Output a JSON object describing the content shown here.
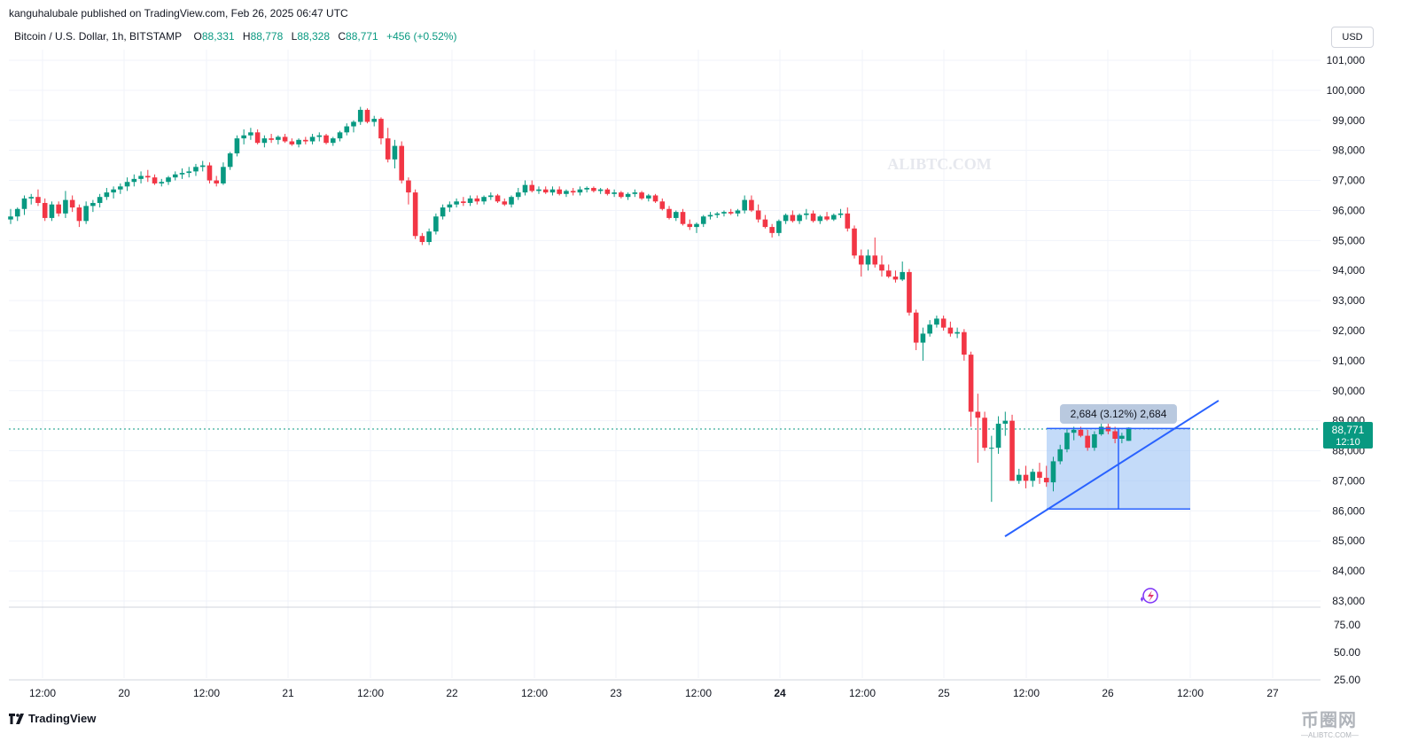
{
  "header": {
    "published": "kanguhalubale published on TradingView.com, Feb 26, 2025 06:47 UTC",
    "symbol": "Bitcoin / U.S. Dollar, 1h, BITSTAMP",
    "o_label": "O",
    "o_value": "88,331",
    "h_label": "H",
    "h_value": "88,778",
    "l_label": "L",
    "l_value": "88,328",
    "c_label": "C",
    "c_value": "88,771",
    "change": "+456 (+0.52%)"
  },
  "currency": "USD",
  "watermark": "ALIBTC.COM",
  "brand": "TradingView",
  "corner_watermark": {
    "cn": "币圈网",
    "url": "—ALIBTC.COM—"
  },
  "colors": {
    "up": "#089981",
    "down": "#F23645",
    "tool_fill": "#9CC3F5",
    "tool_line": "#2962FF",
    "grid": "#f0f3fa"
  },
  "chart_data": {
    "type": "candlestick",
    "interval": "1h",
    "y_ticks": [
      "101,000",
      "100,000",
      "99,000",
      "98,000",
      "97,000",
      "96,000",
      "95,000",
      "94,000",
      "93,000",
      "92,000",
      "91,000",
      "90,000",
      "89,000",
      "88,000",
      "87,000",
      "86,000",
      "85,000",
      "84,000",
      "83,000"
    ],
    "ylim": [
      83000,
      101500
    ],
    "lower_ticks": [
      "75.00",
      "50.00",
      "25.00"
    ],
    "x_ticks": [
      "12:00",
      "20",
      "12:00",
      "21",
      "12:00",
      "22",
      "12:00",
      "23",
      "12:00",
      "24",
      "12:00",
      "25",
      "12:00",
      "26",
      "12:00",
      "27"
    ],
    "bold_x_tick": "24",
    "candles_ohlc": [
      [
        95700,
        96050,
        95550,
        95800
      ],
      [
        95800,
        96100,
        95650,
        96050
      ],
      [
        96050,
        96500,
        95850,
        96400
      ],
      [
        96400,
        96550,
        96200,
        96450
      ],
      [
        96450,
        96700,
        96150,
        96250
      ],
      [
        96250,
        96400,
        95650,
        95750
      ],
      [
        95750,
        96300,
        95650,
        96200
      ],
      [
        96200,
        96300,
        95800,
        95900
      ],
      [
        95900,
        96650,
        95750,
        96350
      ],
      [
        96350,
        96500,
        95950,
        96100
      ],
      [
        96100,
        96200,
        95450,
        95650
      ],
      [
        95650,
        96300,
        95550,
        96150
      ],
      [
        96150,
        96350,
        95950,
        96250
      ],
      [
        96250,
        96550,
        96100,
        96450
      ],
      [
        96450,
        96750,
        96350,
        96600
      ],
      [
        96600,
        96800,
        96400,
        96700
      ],
      [
        96700,
        96900,
        96550,
        96800
      ],
      [
        96800,
        97100,
        96650,
        96950
      ],
      [
        96950,
        97200,
        96800,
        97050
      ],
      [
        97050,
        97300,
        96900,
        97150
      ],
      [
        97150,
        97350,
        96950,
        97100
      ],
      [
        97100,
        97200,
        96850,
        96900
      ],
      [
        96900,
        97050,
        96800,
        96950
      ],
      [
        96950,
        97150,
        96850,
        97100
      ],
      [
        97100,
        97300,
        97000,
        97200
      ],
      [
        97200,
        97400,
        97050,
        97250
      ],
      [
        97250,
        97450,
        97100,
        97300
      ],
      [
        97300,
        97550,
        97150,
        97450
      ],
      [
        97450,
        97650,
        97300,
        97500
      ],
      [
        97500,
        97600,
        96900,
        97000
      ],
      [
        97000,
        97150,
        96800,
        96900
      ],
      [
        96900,
        97600,
        96850,
        97450
      ],
      [
        97450,
        97950,
        97350,
        97900
      ],
      [
        97900,
        98500,
        97800,
        98400
      ],
      [
        98400,
        98700,
        98200,
        98500
      ],
      [
        98500,
        98750,
        98350,
        98600
      ],
      [
        98600,
        98700,
        98200,
        98250
      ],
      [
        98250,
        98500,
        98100,
        98400
      ],
      [
        98400,
        98550,
        98250,
        98350
      ],
      [
        98350,
        98500,
        98200,
        98450
      ],
      [
        98450,
        98550,
        98250,
        98300
      ],
      [
        98300,
        98400,
        98150,
        98200
      ],
      [
        98200,
        98400,
        98100,
        98350
      ],
      [
        98350,
        98450,
        98200,
        98300
      ],
      [
        98300,
        98550,
        98200,
        98450
      ],
      [
        98450,
        98600,
        98300,
        98500
      ],
      [
        98500,
        98550,
        98200,
        98250
      ],
      [
        98250,
        98450,
        98150,
        98400
      ],
      [
        98400,
        98650,
        98300,
        98600
      ],
      [
        98600,
        98900,
        98500,
        98800
      ],
      [
        98800,
        99000,
        98600,
        98950
      ],
      [
        98950,
        99450,
        98850,
        99350
      ],
      [
        99350,
        99400,
        98900,
        98950
      ],
      [
        98950,
        99150,
        98800,
        99050
      ],
      [
        99050,
        99100,
        98200,
        98400
      ],
      [
        98400,
        98750,
        97600,
        97700
      ],
      [
        97700,
        98350,
        97400,
        98150
      ],
      [
        98150,
        98300,
        96900,
        97000
      ],
      [
        97000,
        97100,
        96200,
        96600
      ],
      [
        96600,
        96700,
        95050,
        95150
      ],
      [
        95150,
        95250,
        94850,
        94950
      ],
      [
        94950,
        95400,
        94850,
        95300
      ],
      [
        95300,
        95900,
        95200,
        95800
      ],
      [
        95800,
        96200,
        95700,
        96100
      ],
      [
        96100,
        96300,
        95950,
        96200
      ],
      [
        96200,
        96400,
        96100,
        96300
      ],
      [
        96300,
        96450,
        96150,
        96250
      ],
      [
        96250,
        96500,
        96150,
        96400
      ],
      [
        96400,
        96500,
        96200,
        96300
      ],
      [
        96300,
        96500,
        96200,
        96450
      ],
      [
        96450,
        96600,
        96350,
        96500
      ],
      [
        96500,
        96550,
        96250,
        96300
      ],
      [
        96300,
        96400,
        96150,
        96200
      ],
      [
        96200,
        96500,
        96100,
        96450
      ],
      [
        96450,
        96750,
        96350,
        96600
      ],
      [
        96600,
        97000,
        96500,
        96850
      ],
      [
        96850,
        97000,
        96600,
        96650
      ],
      [
        96650,
        96800,
        96550,
        96700
      ],
      [
        96700,
        96800,
        96550,
        96600
      ],
      [
        96600,
        96800,
        96500,
        96700
      ],
      [
        96700,
        96800,
        96500,
        96550
      ],
      [
        96550,
        96700,
        96450,
        96650
      ],
      [
        96650,
        96750,
        96500,
        96600
      ],
      [
        96600,
        96800,
        96500,
        96700
      ],
      [
        96700,
        96800,
        96600,
        96750
      ],
      [
        96750,
        96800,
        96600,
        96650
      ],
      [
        96650,
        96750,
        96550,
        96700
      ],
      [
        96700,
        96750,
        96500,
        96550
      ],
      [
        96550,
        96700,
        96450,
        96600
      ],
      [
        96600,
        96650,
        96400,
        96450
      ],
      [
        96450,
        96600,
        96350,
        96550
      ],
      [
        96550,
        96700,
        96450,
        96600
      ],
      [
        96600,
        96650,
        96350,
        96400
      ],
      [
        96400,
        96550,
        96300,
        96500
      ],
      [
        96500,
        96550,
        96250,
        96300
      ],
      [
        96300,
        96400,
        96000,
        96050
      ],
      [
        96050,
        96150,
        95700,
        95750
      ],
      [
        95750,
        96000,
        95650,
        95950
      ],
      [
        95950,
        96050,
        95500,
        95550
      ],
      [
        95550,
        95700,
        95350,
        95450
      ],
      [
        95450,
        95600,
        95250,
        95550
      ],
      [
        95550,
        95850,
        95450,
        95800
      ],
      [
        95800,
        95950,
        95700,
        95850
      ],
      [
        95850,
        95950,
        95750,
        95900
      ],
      [
        95900,
        96000,
        95800,
        95950
      ],
      [
        95950,
        96050,
        95850,
        95900
      ],
      [
        95900,
        96050,
        95800,
        96000
      ],
      [
        96000,
        96500,
        95900,
        96350
      ],
      [
        96350,
        96500,
        95950,
        96000
      ],
      [
        96000,
        96200,
        95600,
        95700
      ],
      [
        95700,
        95850,
        95400,
        95450
      ],
      [
        95450,
        95550,
        95100,
        95250
      ],
      [
        95250,
        95700,
        95150,
        95650
      ],
      [
        95650,
        95900,
        95550,
        95850
      ],
      [
        95850,
        96000,
        95600,
        95650
      ],
      [
        95650,
        95900,
        95550,
        95850
      ],
      [
        95850,
        96050,
        95700,
        95900
      ],
      [
        95900,
        96000,
        95600,
        95650
      ],
      [
        95650,
        95850,
        95550,
        95800
      ],
      [
        95800,
        95950,
        95650,
        95700
      ],
      [
        95700,
        95900,
        95650,
        95850
      ],
      [
        95850,
        96050,
        95750,
        95900
      ],
      [
        95900,
        96100,
        95300,
        95400
      ],
      [
        95400,
        95500,
        94400,
        94500
      ],
      [
        94500,
        94700,
        93800,
        94200
      ],
      [
        94200,
        94700,
        94000,
        94500
      ],
      [
        94500,
        95100,
        94100,
        94200
      ],
      [
        94200,
        94500,
        93800,
        94000
      ],
      [
        94000,
        94200,
        93750,
        93800
      ],
      [
        93800,
        94000,
        93600,
        93700
      ],
      [
        93700,
        94300,
        93650,
        93950
      ],
      [
        93950,
        94050,
        92500,
        92600
      ],
      [
        92600,
        92700,
        91350,
        91600
      ],
      [
        91600,
        92100,
        91000,
        91900
      ],
      [
        91900,
        92350,
        91800,
        92200
      ],
      [
        92200,
        92500,
        92100,
        92400
      ],
      [
        92400,
        92500,
        92000,
        92100
      ],
      [
        92100,
        92300,
        91800,
        91900
      ],
      [
        91900,
        92100,
        91750,
        91950
      ],
      [
        91950,
        92050,
        91000,
        91200
      ],
      [
        91200,
        91300,
        88800,
        89300
      ],
      [
        89300,
        89900,
        87600,
        89100
      ],
      [
        89100,
        89300,
        88000,
        88100
      ],
      [
        88100,
        88500,
        86300,
        88100
      ],
      [
        88100,
        89150,
        87900,
        88900
      ],
      [
        88900,
        89300,
        88500,
        89000
      ],
      [
        89000,
        89200,
        87900,
        87000
      ],
      [
        87000,
        87400,
        86900,
        87200
      ],
      [
        87200,
        87500,
        86750,
        87000
      ],
      [
        87000,
        87400,
        86800,
        87300
      ],
      [
        87300,
        87600,
        86900,
        87100
      ],
      [
        87100,
        87500,
        86800,
        86950
      ],
      [
        86950,
        87800,
        86650,
        87650
      ],
      [
        87650,
        88200,
        87550,
        88050
      ],
      [
        88050,
        88750,
        87950,
        88600
      ],
      [
        88600,
        88800,
        88350,
        88700
      ],
      [
        88700,
        88800,
        88450,
        88500
      ],
      [
        88500,
        88700,
        88000,
        88100
      ],
      [
        88100,
        88650,
        88000,
        88550
      ],
      [
        88550,
        88900,
        88500,
        88800
      ],
      [
        88800,
        88900,
        88550,
        88650
      ],
      [
        88650,
        88800,
        88250,
        88400
      ],
      [
        88400,
        88600,
        88250,
        88500
      ],
      [
        88331,
        88778,
        88328,
        88771
      ]
    ],
    "last_price": "88,771",
    "countdown": "12:10",
    "measure_label": "2,684 (3.12%) 2,684",
    "measure_range": [
      86060,
      88744
    ],
    "trendline": [
      [
        85150,
        0
      ],
      [
        89670,
        1
      ]
    ]
  }
}
